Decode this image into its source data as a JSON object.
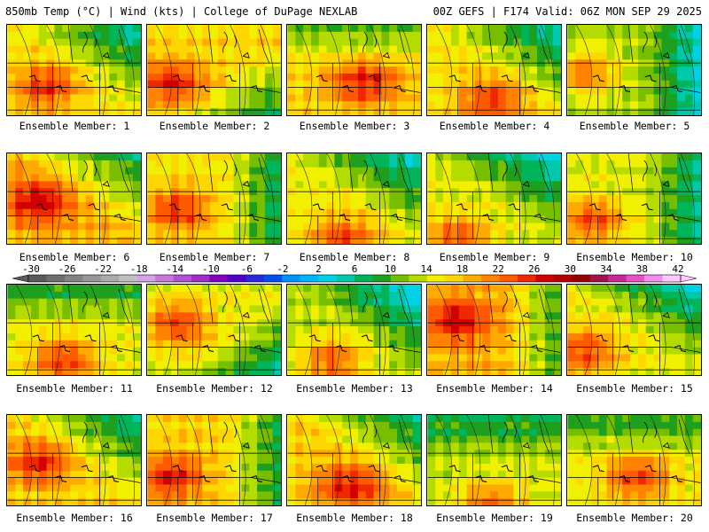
{
  "header": {
    "left": "850mb Temp (°C) | Wind (kts) | College of DuPage NEXLAB",
    "right": "00Z GEFS | F174 Valid: 06Z MON SEP 29 2025"
  },
  "colors": {
    "scale": [
      "#5a5a5a",
      "#6e6e6e",
      "#828282",
      "#969696",
      "#aaaaaa",
      "#c0c0c0",
      "#d4a0e6",
      "#c878dc",
      "#b450d2",
      "#a02dc8",
      "#8200be",
      "#5000c8",
      "#2828dc",
      "#0050f0",
      "#0091ff",
      "#00b4ff",
      "#00d2e6",
      "#00c8aa",
      "#00b45a",
      "#1ea01e",
      "#78be00",
      "#b4dc00",
      "#f0f000",
      "#ffd700",
      "#ffaa00",
      "#ff8200",
      "#ff5a00",
      "#f02800",
      "#d20000",
      "#b40000",
      "#960000",
      "#a0144b",
      "#c82896",
      "#e650c8",
      "#f08cf0",
      "#ffc8ff"
    ]
  },
  "colorbar": {
    "ticks": [
      "-30",
      "-26",
      "-22",
      "-18",
      "-14",
      "-10",
      "-6",
      "-2",
      "2",
      "6",
      "10",
      "14",
      "18",
      "22",
      "26",
      "30",
      "34",
      "38",
      "42"
    ]
  },
  "panels": [
    {
      "label": "Ensemble Member: 1",
      "warmth": 0.55,
      "hot": [
        0.25,
        0.65
      ],
      "cool": "ne"
    },
    {
      "label": "Ensemble Member: 2",
      "warmth": 0.6,
      "hot": [
        0.15,
        0.6
      ],
      "cool": "se"
    },
    {
      "label": "Ensemble Member: 3",
      "warmth": 0.62,
      "hot": [
        0.55,
        0.6
      ],
      "cool": "n"
    },
    {
      "label": "Ensemble Member: 4",
      "warmth": 0.55,
      "hot": [
        0.45,
        0.8
      ],
      "cool": "ne"
    },
    {
      "label": "Ensemble Member: 5",
      "warmth": 0.35,
      "hot": [
        0.1,
        0.5
      ],
      "cool": "e"
    },
    {
      "label": "Ensemble Member: 6",
      "warmth": 0.72,
      "hot": [
        0.2,
        0.5
      ],
      "cool": "ne"
    },
    {
      "label": "Ensemble Member: 7",
      "warmth": 0.55,
      "hot": [
        0.2,
        0.6
      ],
      "cool": "e"
    },
    {
      "label": "Ensemble Member: 8",
      "warmth": 0.5,
      "hot": [
        0.4,
        0.9
      ],
      "cool": "ne"
    },
    {
      "label": "Ensemble Member: 9",
      "warmth": 0.45,
      "hot": [
        0.2,
        0.9
      ],
      "cool": "ne"
    },
    {
      "label": "Ensemble Member: 10",
      "warmth": 0.45,
      "hot": [
        0.15,
        0.7
      ],
      "cool": "e"
    },
    {
      "label": "Ensemble Member: 11",
      "warmth": 0.5,
      "hot": [
        0.4,
        0.8
      ],
      "cool": "n"
    },
    {
      "label": "Ensemble Member: 12",
      "warmth": 0.5,
      "hot": [
        0.2,
        0.4
      ],
      "cool": "se"
    },
    {
      "label": "Ensemble Member: 13",
      "warmth": 0.4,
      "hot": [
        0.3,
        0.8
      ],
      "cool": "ne"
    },
    {
      "label": "Ensemble Member: 14",
      "warmth": 0.7,
      "hot": [
        0.2,
        0.35
      ],
      "cool": "e"
    },
    {
      "label": "Ensemble Member: 15",
      "warmth": 0.5,
      "hot": [
        0.1,
        0.7
      ],
      "cool": "ne"
    },
    {
      "label": "Ensemble Member: 16",
      "warmth": 0.6,
      "hot": [
        0.2,
        0.5
      ],
      "cool": "ne"
    },
    {
      "label": "Ensemble Member: 17",
      "warmth": 0.62,
      "hot": [
        0.15,
        0.65
      ],
      "cool": "e"
    },
    {
      "label": "Ensemble Member: 18",
      "warmth": 0.65,
      "hot": [
        0.45,
        0.75
      ],
      "cool": "ne"
    },
    {
      "label": "Ensemble Member: 19",
      "warmth": 0.42,
      "hot": [
        0.45,
        0.95
      ],
      "cool": "n"
    },
    {
      "label": "Ensemble Member: 20",
      "warmth": 0.5,
      "hot": [
        0.5,
        0.65
      ],
      "cool": "n"
    }
  ]
}
